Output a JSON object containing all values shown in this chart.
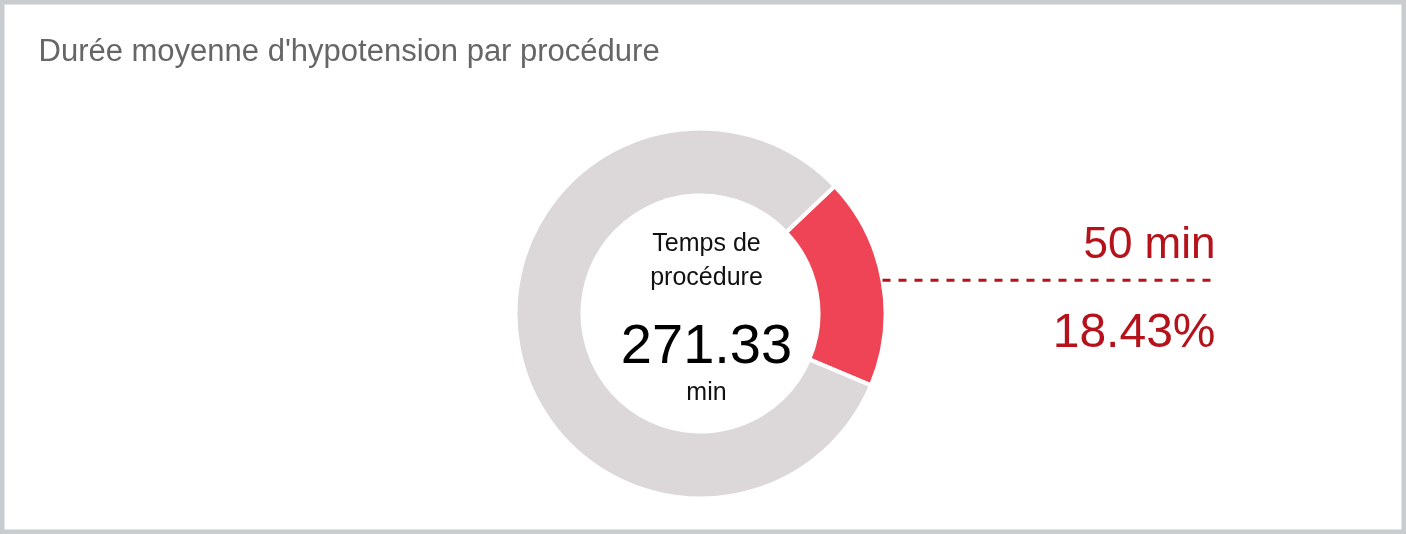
{
  "chart_data": {
    "type": "donut",
    "title": "Durée moyenne d'hypotension par procédure",
    "categories": [
      null,
      null
    ],
    "values": [
      50,
      221.33
    ],
    "colors": [
      "#ee4455",
      "#dcd8da"
    ],
    "value_labels": [
      "50 min",
      null
    ],
    "annotations": [
      "18.43%",
      "Temps de procédure",
      "271.33",
      "min"
    ]
  }
}
